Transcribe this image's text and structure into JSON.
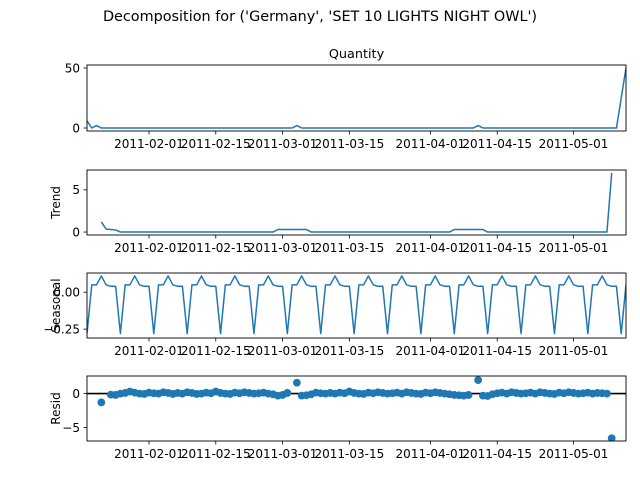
{
  "figure": {
    "suptitle": "Decomposition for ('Germany', 'SET 10 LIGHTS NIGHT OWL')"
  },
  "chart_data": [
    {
      "type": "line",
      "title": "Quantity",
      "ylabel": "",
      "xlim": [
        "2011-01-19",
        "2011-05-12"
      ],
      "ylim": [
        -2.5,
        52.5
      ],
      "yticks": [
        "0",
        "50"
      ],
      "xticks": [
        "2011-02-01",
        "2011-02-15",
        "2011-03-01",
        "2011-03-15",
        "2011-04-01",
        "2011-04-15",
        "2011-05-01"
      ],
      "color": "#1f77b4",
      "series": [
        {
          "points": [
            [
              "2011-01-19",
              6
            ],
            [
              "2011-01-20",
              0
            ],
            [
              "2011-01-21",
              2
            ],
            [
              "2011-01-22",
              0
            ],
            [
              "2011-03-03",
              0
            ],
            [
              "2011-03-04",
              2
            ],
            [
              "2011-03-05",
              0
            ],
            [
              "2011-04-10",
              0
            ],
            [
              "2011-04-11",
              2
            ],
            [
              "2011-04-12",
              0
            ],
            [
              "2011-05-10",
              0
            ],
            [
              "2011-05-12",
              50
            ]
          ]
        }
      ]
    },
    {
      "type": "line",
      "title": "",
      "ylabel": "Trend",
      "xlim": [
        "2011-01-19",
        "2011-05-12"
      ],
      "ylim": [
        -0.35,
        7.35
      ],
      "yticks": [
        "0",
        "5"
      ],
      "xticks": [
        "2011-02-01",
        "2011-02-15",
        "2011-03-01",
        "2011-03-15",
        "2011-04-01",
        "2011-04-15",
        "2011-05-01"
      ],
      "color": "#1f77b4",
      "series": [
        {
          "points": [
            [
              "2011-01-22",
              1.2
            ],
            [
              "2011-01-23",
              0.35
            ],
            [
              "2011-01-24",
              0.3
            ],
            [
              "2011-01-25",
              0.25
            ],
            [
              "2011-01-26",
              0.0
            ],
            [
              "2011-02-27",
              0.0
            ],
            [
              "2011-02-28",
              0.3
            ],
            [
              "2011-03-06",
              0.3
            ],
            [
              "2011-03-07",
              0.0
            ],
            [
              "2011-04-05",
              0.0
            ],
            [
              "2011-04-06",
              0.3
            ],
            [
              "2011-04-12",
              0.3
            ],
            [
              "2011-04-13",
              0.0
            ],
            [
              "2011-05-08",
              0.0
            ],
            [
              "2011-05-09",
              7.0
            ]
          ]
        }
      ]
    },
    {
      "type": "line",
      "title": "",
      "ylabel": "Seasonal",
      "xlim": [
        "2011-01-19",
        "2011-05-12"
      ],
      "ylim": [
        -0.31,
        0.13
      ],
      "yticks": [
        "0.00",
        "−0.25"
      ],
      "ytick_values": [
        0.0,
        -0.25
      ],
      "xticks": [
        "2011-02-01",
        "2011-02-15",
        "2011-03-01",
        "2011-03-15",
        "2011-04-01",
        "2011-04-15",
        "2011-05-01"
      ],
      "color": "#1f77b4",
      "series": [
        {
          "start": "2011-01-19",
          "period_pattern": [
            -0.28,
            0.05,
            0.05,
            0.11,
            0.05,
            0.04,
            0.04
          ],
          "end": "2011-05-12"
        }
      ]
    },
    {
      "type": "scatter",
      "title": "",
      "ylabel": "Resid",
      "xlim": [
        "2011-01-19",
        "2011-05-12"
      ],
      "ylim": [
        -7.0,
        2.6
      ],
      "yticks": [
        "0",
        "−5"
      ],
      "ytick_values": [
        0,
        -5
      ],
      "xticks": [
        "2011-02-01",
        "2011-02-15",
        "2011-03-01",
        "2011-03-15",
        "2011-04-01",
        "2011-04-15",
        "2011-05-01"
      ],
      "baseline": 0,
      "color": "#1f77b4",
      "series": [
        {
          "points": [
            [
              "2011-01-22",
              -1.3
            ],
            [
              "2011-01-24",
              -0.15
            ],
            [
              "2011-01-25",
              -0.2
            ],
            [
              "2011-01-26",
              0.0
            ],
            [
              "2011-01-27",
              0.1
            ],
            [
              "2011-01-28",
              0.3
            ],
            [
              "2011-01-29",
              0.15
            ],
            [
              "2011-01-30",
              0.0
            ],
            [
              "2011-01-31",
              -0.05
            ],
            [
              "2011-02-01",
              0.15
            ],
            [
              "2011-02-02",
              0.05
            ],
            [
              "2011-02-03",
              0.0
            ],
            [
              "2011-02-04",
              0.2
            ],
            [
              "2011-02-05",
              0.1
            ],
            [
              "2011-02-06",
              -0.05
            ],
            [
              "2011-02-07",
              0.1
            ],
            [
              "2011-02-08",
              0.0
            ],
            [
              "2011-02-09",
              0.2
            ],
            [
              "2011-02-10",
              0.1
            ],
            [
              "2011-02-11",
              -0.05
            ],
            [
              "2011-02-12",
              0.0
            ],
            [
              "2011-02-13",
              0.15
            ],
            [
              "2011-02-14",
              0.05
            ],
            [
              "2011-02-15",
              0.3
            ],
            [
              "2011-02-16",
              0.1
            ],
            [
              "2011-02-17",
              0.0
            ],
            [
              "2011-02-18",
              -0.05
            ],
            [
              "2011-02-19",
              0.15
            ],
            [
              "2011-02-20",
              0.05
            ],
            [
              "2011-02-21",
              0.2
            ],
            [
              "2011-02-22",
              0.1
            ],
            [
              "2011-02-23",
              0.0
            ],
            [
              "2011-02-24",
              0.05
            ],
            [
              "2011-02-25",
              0.15
            ],
            [
              "2011-02-26",
              0.0
            ],
            [
              "2011-02-27",
              -0.1
            ],
            [
              "2011-02-28",
              -0.3
            ],
            [
              "2011-03-01",
              -0.2
            ],
            [
              "2011-03-02",
              0.1
            ],
            [
              "2011-03-04",
              1.6
            ],
            [
              "2011-03-05",
              -0.3
            ],
            [
              "2011-03-06",
              -0.25
            ],
            [
              "2011-03-07",
              -0.1
            ],
            [
              "2011-03-08",
              0.15
            ],
            [
              "2011-03-09",
              0.05
            ],
            [
              "2011-03-10",
              0.0
            ],
            [
              "2011-03-11",
              0.1
            ],
            [
              "2011-03-12",
              0.0
            ],
            [
              "2011-03-13",
              0.15
            ],
            [
              "2011-03-14",
              0.05
            ],
            [
              "2011-03-15",
              0.3
            ],
            [
              "2011-03-16",
              0.1
            ],
            [
              "2011-03-17",
              0.0
            ],
            [
              "2011-03-18",
              -0.05
            ],
            [
              "2011-03-19",
              0.15
            ],
            [
              "2011-03-20",
              0.05
            ],
            [
              "2011-03-21",
              0.2
            ],
            [
              "2011-03-22",
              0.1
            ],
            [
              "2011-03-23",
              0.0
            ],
            [
              "2011-03-24",
              0.05
            ],
            [
              "2011-03-25",
              0.15
            ],
            [
              "2011-03-26",
              0.0
            ],
            [
              "2011-03-27",
              0.2
            ],
            [
              "2011-03-28",
              0.1
            ],
            [
              "2011-03-29",
              0.0
            ],
            [
              "2011-03-30",
              -0.05
            ],
            [
              "2011-03-31",
              0.15
            ],
            [
              "2011-04-01",
              0.05
            ],
            [
              "2011-04-02",
              0.2
            ],
            [
              "2011-04-03",
              0.1
            ],
            [
              "2011-04-04",
              0.0
            ],
            [
              "2011-04-05",
              -0.1
            ],
            [
              "2011-04-06",
              -0.2
            ],
            [
              "2011-04-07",
              -0.25
            ],
            [
              "2011-04-08",
              -0.3
            ],
            [
              "2011-04-09",
              -0.2
            ],
            [
              "2011-04-11",
              2.0
            ],
            [
              "2011-04-12",
              -0.3
            ],
            [
              "2011-04-13",
              -0.35
            ],
            [
              "2011-04-14",
              -0.1
            ],
            [
              "2011-04-15",
              0.05
            ],
            [
              "2011-04-16",
              0.15
            ],
            [
              "2011-04-17",
              0.0
            ],
            [
              "2011-04-18",
              0.2
            ],
            [
              "2011-04-19",
              0.1
            ],
            [
              "2011-04-20",
              0.0
            ],
            [
              "2011-04-21",
              0.05
            ],
            [
              "2011-04-22",
              0.15
            ],
            [
              "2011-04-23",
              0.0
            ],
            [
              "2011-04-24",
              0.2
            ],
            [
              "2011-04-25",
              0.1
            ],
            [
              "2011-04-26",
              0.0
            ],
            [
              "2011-04-27",
              -0.05
            ],
            [
              "2011-04-28",
              0.15
            ],
            [
              "2011-04-29",
              0.05
            ],
            [
              "2011-04-30",
              0.2
            ],
            [
              "2011-05-01",
              0.1
            ],
            [
              "2011-05-02",
              0.0
            ],
            [
              "2011-05-03",
              0.05
            ],
            [
              "2011-05-04",
              0.15
            ],
            [
              "2011-05-05",
              0.0
            ],
            [
              "2011-05-06",
              0.1
            ],
            [
              "2011-05-07",
              0.05
            ],
            [
              "2011-05-08",
              0.0
            ],
            [
              "2011-05-09",
              -6.6
            ]
          ]
        }
      ]
    }
  ]
}
